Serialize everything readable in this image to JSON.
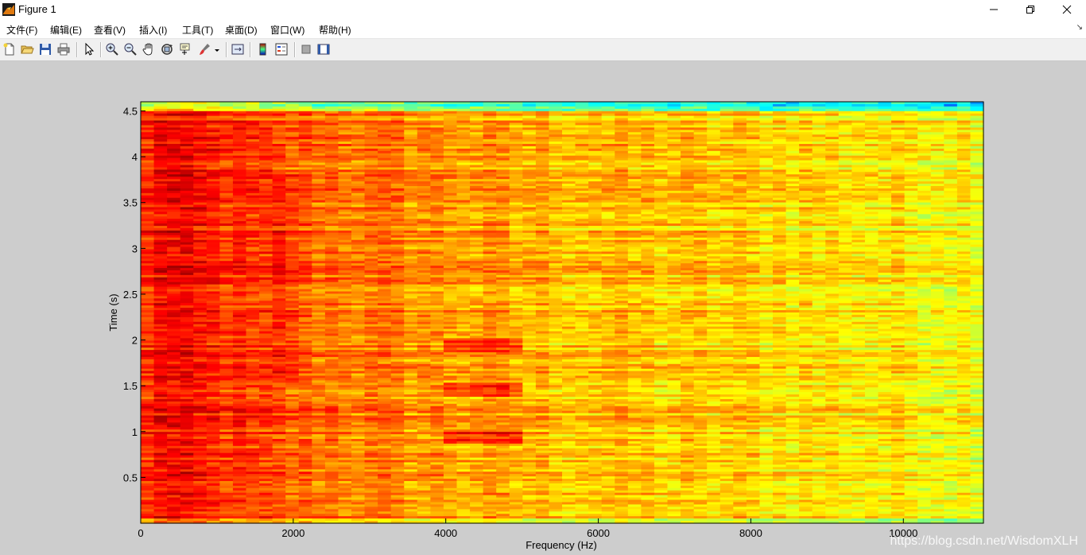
{
  "window": {
    "title": "Figure 1"
  },
  "menu": [
    "文件(F)",
    "编辑(E)",
    "查看(V)",
    "插入(I)",
    "工具(T)",
    "桌面(D)",
    "窗口(W)",
    "帮助(H)"
  ],
  "toolbar": {
    "buttons": [
      "new-figure",
      "open-file",
      "save-figure",
      "print-figure",
      "edit-plot",
      "zoom-in",
      "zoom-out",
      "pan",
      "rotate-3d",
      "data-cursor",
      "brush",
      "link-plot",
      "insert-colorbar",
      "insert-legend",
      "hide-plot-tools",
      "show-plot-tools"
    ]
  },
  "watermark": "https://blog.csdn.net/WisdomXLH",
  "chart_data": {
    "type": "heatmap",
    "xlabel": "Frequency (Hz)",
    "ylabel": "Time (s)",
    "xlim": [
      0,
      11050
    ],
    "ylim": [
      0,
      4.6
    ],
    "xticks": [
      0,
      2000,
      4000,
      6000,
      8000,
      10000
    ],
    "yticks": [
      0.5,
      1,
      1.5,
      2,
      2.5,
      3,
      3.5,
      4,
      4.5
    ],
    "colormap": "jet",
    "description_rows": "high energy (red) at low frequencies 0-2000 Hz, decreasing to yellow/green above 6000 Hz; dark red bands near 4500 Hz at t≈0.95, 1.45, 1.95 s",
    "bands": [
      {
        "f_from": 0,
        "f_to": 2000,
        "level": "high"
      },
      {
        "f_from": 2000,
        "f_to": 5000,
        "level": "medium-high"
      },
      {
        "f_from": 5000,
        "f_to": 11050,
        "level": "medium"
      }
    ],
    "hotspots": [
      {
        "f": 4500,
        "t": 0.95
      },
      {
        "f": 4500,
        "t": 1.45
      },
      {
        "f": 4500,
        "t": 1.95
      }
    ]
  }
}
